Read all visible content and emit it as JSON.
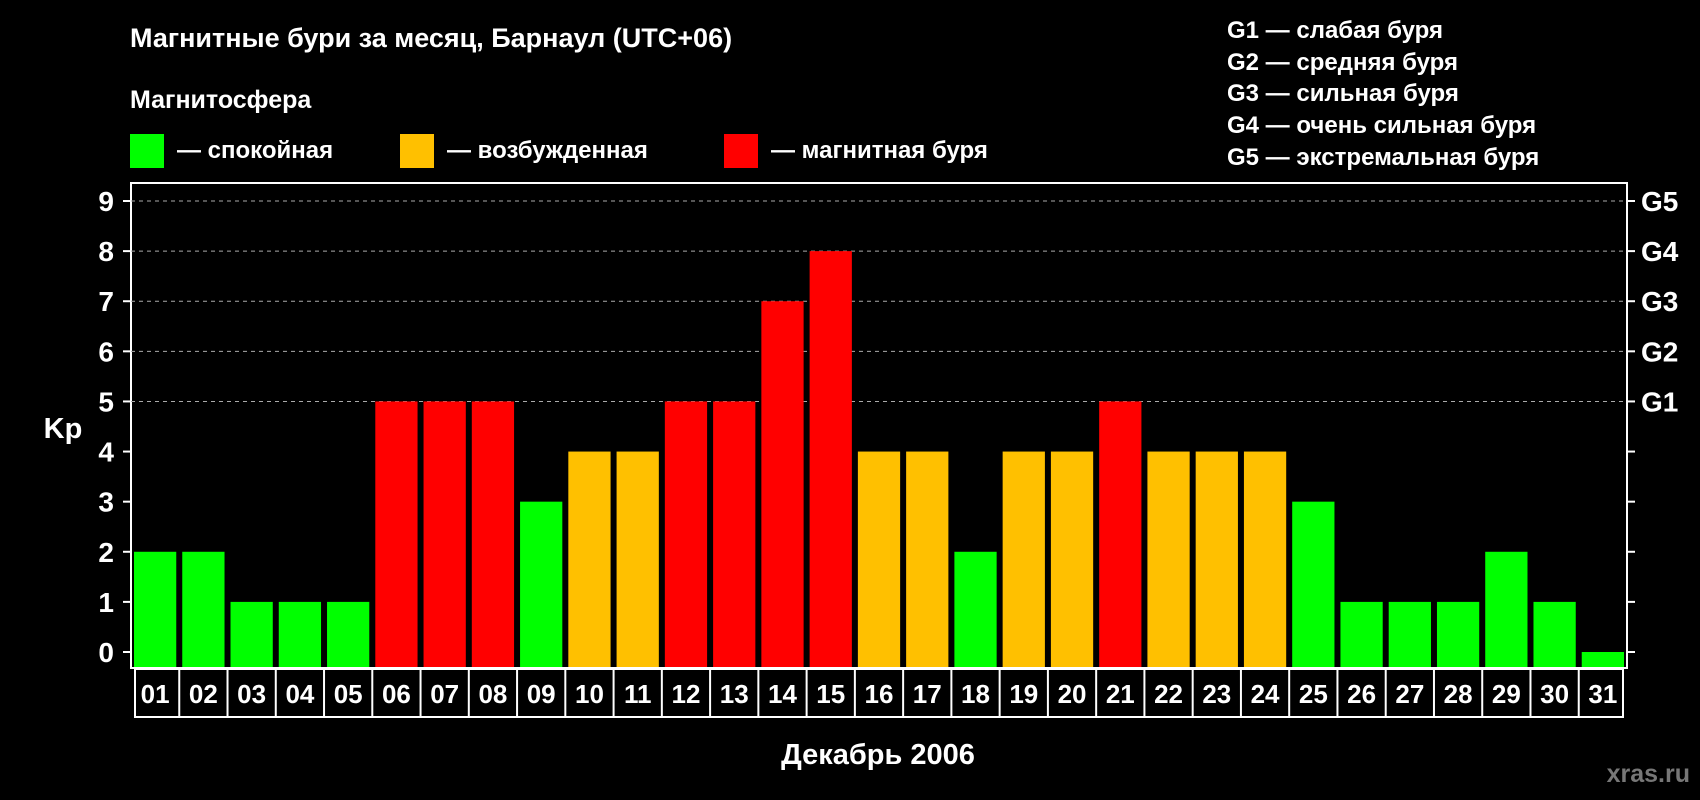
{
  "chart_data": {
    "type": "bar",
    "title": "Магнитные бури за месяц, Барнаул (UTC+06)",
    "legend_title": "Магнитосфера",
    "legend": [
      {
        "label": "— спокойная",
        "color": "#00ff00"
      },
      {
        "label": "— возбужденная",
        "color": "#ffc000"
      },
      {
        "label": "— магнитная буря",
        "color": "#ff0000"
      }
    ],
    "storm_scale": [
      "G1 — слабая буря",
      "G2 — средняя буря",
      "G3 — сильная буря",
      "G4 — очень сильная буря",
      "G5 — экстремальная буря"
    ],
    "ylabel": "Kp",
    "xlabel": "Декабрь 2006",
    "ylim": [
      0,
      9
    ],
    "yticks": [
      "0",
      "1",
      "2",
      "3",
      "4",
      "5",
      "6",
      "7",
      "8",
      "9"
    ],
    "right_ticks": [
      {
        "value": 5,
        "label": "G1"
      },
      {
        "value": 6,
        "label": "G2"
      },
      {
        "value": 7,
        "label": "G3"
      },
      {
        "value": 8,
        "label": "G4"
      },
      {
        "value": 9,
        "label": "G5"
      }
    ],
    "grid": "dashed horizontal lines at 5, 6, 7, 8, 9",
    "categories": [
      "01",
      "02",
      "03",
      "04",
      "05",
      "06",
      "07",
      "08",
      "09",
      "10",
      "11",
      "12",
      "13",
      "14",
      "15",
      "16",
      "17",
      "18",
      "19",
      "20",
      "21",
      "22",
      "23",
      "24",
      "25",
      "26",
      "27",
      "28",
      "29",
      "30",
      "31"
    ],
    "values": [
      2,
      2,
      1,
      1,
      1,
      5,
      5,
      5,
      3,
      4,
      4,
      5,
      5,
      7,
      8,
      4,
      4,
      2,
      4,
      4,
      5,
      4,
      4,
      4,
      3,
      1,
      1,
      1,
      2,
      1,
      0
    ],
    "level_colors": {
      "quiet": "#00ff00",
      "active": "#ffc000",
      "storm": "#ff0000"
    }
  },
  "watermark": "xras.ru"
}
